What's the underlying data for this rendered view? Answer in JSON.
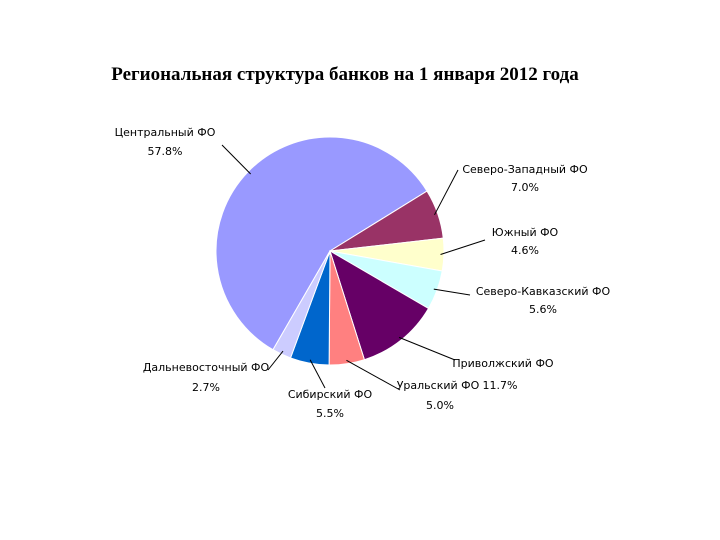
{
  "chart_data": {
    "type": "pie",
    "title": "Региональная структура банков на 1 января 2012 года",
    "categories": [
      "Центральный ФО",
      "Северо-Западный ФО",
      "Южный ФО",
      "Северо-Кавказский ФО",
      "Приволжский ФО",
      "Уральский ФО",
      "Сибирский ФО",
      "Дальневосточный ФО"
    ],
    "values": [
      57.8,
      7.0,
      4.6,
      5.6,
      11.7,
      5.0,
      5.5,
      2.7
    ],
    "value_labels": [
      "57.8%",
      "7.0%",
      "4.6%",
      "5.6%",
      "11.7%",
      "5.0%",
      "5.5%",
      "2.7%"
    ],
    "colors": [
      "#9999ff",
      "#993366",
      "#ffffcc",
      "#ccffff",
      "#660066",
      "#ff8080",
      "#0066cc",
      "#ccccff"
    ]
  }
}
